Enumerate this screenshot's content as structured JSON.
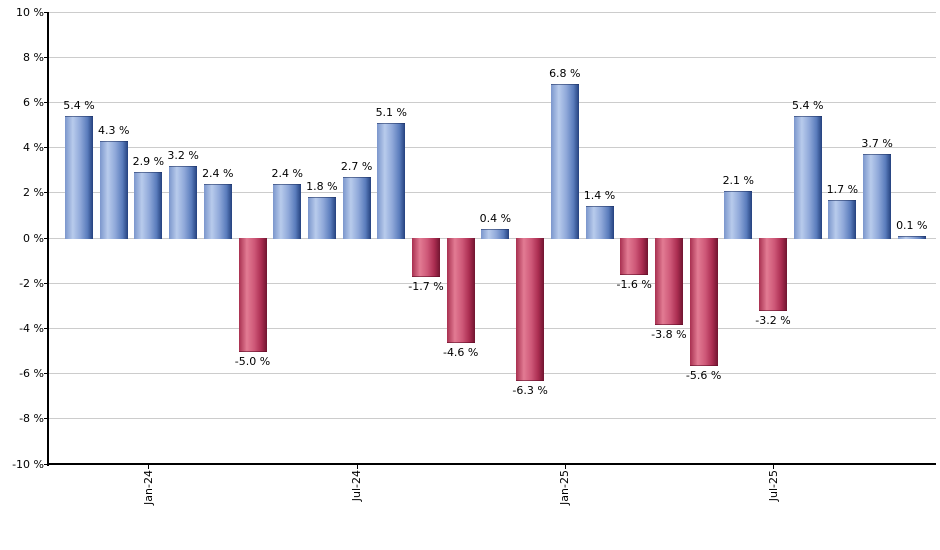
{
  "chart_data": {
    "type": "bar",
    "title": "",
    "xlabel": "",
    "ylabel": "",
    "values": [
      5.4,
      4.3,
      2.9,
      3.2,
      2.4,
      -5.0,
      2.4,
      1.8,
      2.7,
      5.1,
      -1.7,
      -4.6,
      0.4,
      -6.3,
      6.8,
      1.4,
      -1.6,
      -3.8,
      -5.6,
      2.1,
      -3.2,
      5.4,
      1.7,
      3.7,
      0.1
    ],
    "bar_labels": [
      "5.4 %",
      "4.3 %",
      "2.9 %",
      "3.2 %",
      "2.4 %",
      "-5.0 %",
      "2.4 %",
      "1.8 %",
      "2.7 %",
      "5.1 %",
      "-1.7 %",
      "-4.6 %",
      "0.4 %",
      "-6.3 %",
      "6.8 %",
      "1.4 %",
      "-1.6 %",
      "-3.8 %",
      "-5.6 %",
      "2.1 %",
      "-3.2 %",
      "5.4 %",
      "1.7 %",
      "3.7 %",
      "0.1 %"
    ],
    "x_ticks": [
      {
        "bar_index": 2,
        "label": "Jan-24"
      },
      {
        "bar_index": 8,
        "label": "Jul-24"
      },
      {
        "bar_index": 14,
        "label": "Jan-25"
      },
      {
        "bar_index": 20,
        "label": "Jul-25"
      }
    ],
    "y_ticks": [
      "10 %",
      "8 %",
      "6 %",
      "4 %",
      "2 %",
      "0 %",
      "-2 %",
      "-4 %",
      "-6 %",
      "-8 %",
      "-10 %"
    ],
    "ylim": [
      -10,
      10
    ],
    "y_step": 2,
    "grid": true,
    "legend_position": "none",
    "colors": {
      "positive_bar_gradient": [
        "#7b96cc",
        "#b8cbec",
        "#8fa8d9",
        "#5b7dbd",
        "#24417e"
      ],
      "negative_bar_gradient": [
        "#a83050",
        "#e27b93",
        "#ce5878",
        "#aa2c50",
        "#701530"
      ],
      "gridline": "#cccccc",
      "axis": "#000000",
      "label_text": "#000000",
      "background": "#ffffff"
    }
  }
}
